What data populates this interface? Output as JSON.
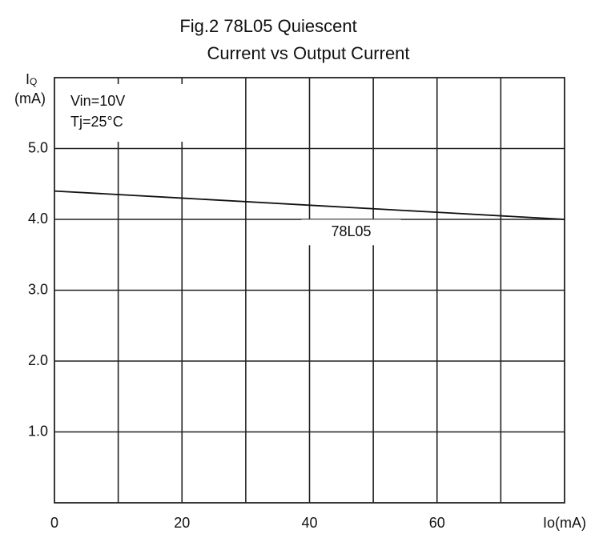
{
  "chart_data": {
    "type": "line",
    "title": [
      "Fig.2 78L05 Quiescent",
      "Current vs Output Current"
    ],
    "ylabel": {
      "symbol": "I",
      "subscript": "Q",
      "unit": "(mA)"
    },
    "xlabel": "Io(mA)",
    "annotations": [
      "Vin=10V",
      "Tj=25°C"
    ],
    "x": [
      0,
      20,
      40,
      60,
      80
    ],
    "series": [
      {
        "name": "78L05",
        "color": "#111111",
        "values": [
          4.4,
          4.3,
          4.2,
          4.1,
          4.0
        ]
      }
    ],
    "xlim": [
      0,
      80
    ],
    "xticks": [
      0,
      20,
      40,
      60
    ],
    "xgrid": [
      10,
      20,
      30,
      40,
      50,
      60,
      70
    ],
    "ylim": [
      0,
      6
    ],
    "yticks": [
      {
        "value": 1,
        "label": "1.0"
      },
      {
        "value": 2,
        "label": "2.0"
      },
      {
        "value": 3,
        "label": "3.0"
      },
      {
        "value": 4,
        "label": "4.0"
      },
      {
        "value": 5,
        "label": "5.0"
      }
    ],
    "grid": true
  }
}
